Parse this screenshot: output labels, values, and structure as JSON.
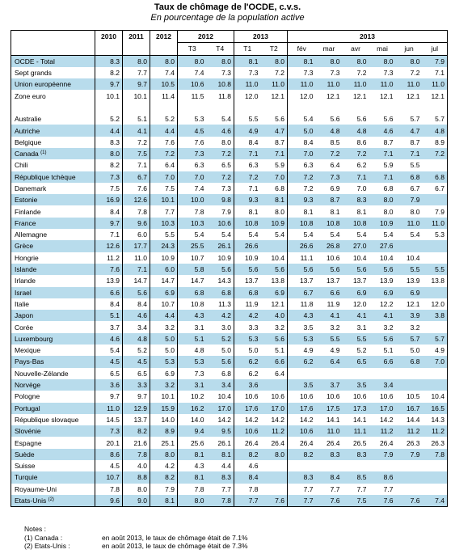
{
  "title": "Taux de chômage de l'OCDE, c.v.s.",
  "subtitle": "En pourcentage de la population active",
  "header": {
    "years": [
      "2010",
      "2011",
      "2012"
    ],
    "q2012": "2012",
    "q2013": "2013",
    "m2013": "2013",
    "quarters": [
      "T3",
      "T4",
      "T1",
      "T2"
    ],
    "months": [
      "fév",
      "mar",
      "avr",
      "mai",
      "jun",
      "jul"
    ]
  },
  "rows": [
    {
      "label": "OCDE - Total",
      "hl": true,
      "vals": [
        "8.3",
        "8.0",
        "8.0",
        "8.0",
        "8.0",
        "8.1",
        "8.0",
        "8.1",
        "8.0",
        "8.0",
        "8.0",
        "8.0",
        "7.9"
      ]
    },
    {
      "label": "Sept grands",
      "hl": false,
      "vals": [
        "8.2",
        "7.7",
        "7.4",
        "7.4",
        "7.3",
        "7.3",
        "7.2",
        "7.3",
        "7.3",
        "7.2",
        "7.3",
        "7.2",
        "7.1"
      ]
    },
    {
      "label": "Union européenne",
      "hl": true,
      "vals": [
        "9.7",
        "9.7",
        "10.5",
        "10.6",
        "10.8",
        "11.0",
        "11.0",
        "11.0",
        "11.0",
        "11.0",
        "11.0",
        "11.0",
        "11.0"
      ]
    },
    {
      "label": "Zone euro",
      "hl": false,
      "vals": [
        "10.1",
        "10.1",
        "11.4",
        "11.5",
        "11.8",
        "12.0",
        "12.1",
        "12.0",
        "12.1",
        "12.1",
        "12.1",
        "12.1",
        "12.1"
      ]
    },
    {
      "spacer": true
    },
    {
      "label": "Australie",
      "hl": false,
      "vals": [
        "5.2",
        "5.1",
        "5.2",
        "5.3",
        "5.4",
        "5.5",
        "5.6",
        "5.4",
        "5.6",
        "5.6",
        "5.6",
        "5.7",
        "5.7"
      ]
    },
    {
      "label": "Autriche",
      "hl": true,
      "vals": [
        "4.4",
        "4.1",
        "4.4",
        "4.5",
        "4.6",
        "4.9",
        "4.7",
        "5.0",
        "4.8",
        "4.8",
        "4.6",
        "4.7",
        "4.8"
      ]
    },
    {
      "label": "Belgique",
      "hl": false,
      "vals": [
        "8.3",
        "7.2",
        "7.6",
        "7.6",
        "8.0",
        "8.4",
        "8.7",
        "8.4",
        "8.5",
        "8.6",
        "8.7",
        "8.7",
        "8.9"
      ]
    },
    {
      "label": "Canada",
      "sup": "(1)",
      "hl": true,
      "vals": [
        "8.0",
        "7.5",
        "7.2",
        "7.3",
        "7.2",
        "7.1",
        "7.1",
        "7.0",
        "7.2",
        "7.2",
        "7.1",
        "7.1",
        "7.2"
      ]
    },
    {
      "label": "Chili",
      "hl": false,
      "vals": [
        "8.2",
        "7.1",
        "6.4",
        "6.3",
        "6.5",
        "6.3",
        "5.9",
        "6.3",
        "6.4",
        "6.2",
        "5.9",
        "5.5",
        ""
      ]
    },
    {
      "label": "République tchèque",
      "hl": true,
      "vals": [
        "7.3",
        "6.7",
        "7.0",
        "7.0",
        "7.2",
        "7.2",
        "7.0",
        "7.2",
        "7.3",
        "7.1",
        "7.1",
        "6.8",
        "6.8"
      ]
    },
    {
      "label": "Danemark",
      "hl": false,
      "vals": [
        "7.5",
        "7.6",
        "7.5",
        "7.4",
        "7.3",
        "7.1",
        "6.8",
        "7.2",
        "6.9",
        "7.0",
        "6.8",
        "6.7",
        "6.7"
      ]
    },
    {
      "label": "Estonie",
      "hl": true,
      "vals": [
        "16.9",
        "12.6",
        "10.1",
        "10.0",
        "9.8",
        "9.3",
        "8.1",
        "9.3",
        "8.7",
        "8.3",
        "8.0",
        "7.9",
        ""
      ]
    },
    {
      "label": "Finlande",
      "hl": false,
      "vals": [
        "8.4",
        "7.8",
        "7.7",
        "7.8",
        "7.9",
        "8.1",
        "8.0",
        "8.1",
        "8.1",
        "8.1",
        "8.0",
        "8.0",
        "7.9"
      ]
    },
    {
      "label": "France",
      "hl": true,
      "vals": [
        "9.7",
        "9.6",
        "10.3",
        "10.3",
        "10.6",
        "10.8",
        "10.9",
        "10.8",
        "10.8",
        "10.8",
        "10.9",
        "11.0",
        "11.0"
      ]
    },
    {
      "label": "Allemagne",
      "hl": false,
      "vals": [
        "7.1",
        "6.0",
        "5.5",
        "5.4",
        "5.4",
        "5.4",
        "5.4",
        "5.4",
        "5.4",
        "5.4",
        "5.4",
        "5.4",
        "5.3"
      ]
    },
    {
      "label": "Grèce",
      "hl": true,
      "vals": [
        "12.6",
        "17.7",
        "24.3",
        "25.5",
        "26.1",
        "26.6",
        "",
        "26.6",
        "26.8",
        "27.0",
        "27.6",
        "",
        ""
      ]
    },
    {
      "label": "Hongrie",
      "hl": false,
      "vals": [
        "11.2",
        "11.0",
        "10.9",
        "10.7",
        "10.9",
        "10.9",
        "10.4",
        "11.1",
        "10.6",
        "10.4",
        "10.4",
        "10.4",
        ""
      ]
    },
    {
      "label": "Islande",
      "hl": true,
      "vals": [
        "7.6",
        "7.1",
        "6.0",
        "5.8",
        "5.6",
        "5.6",
        "5.6",
        "5.6",
        "5.6",
        "5.6",
        "5.6",
        "5.5",
        "5.5"
      ]
    },
    {
      "label": "Irlande",
      "hl": false,
      "vals": [
        "13.9",
        "14.7",
        "14.7",
        "14.7",
        "14.3",
        "13.7",
        "13.8",
        "13.7",
        "13.7",
        "13.7",
        "13.9",
        "13.9",
        "13.8"
      ]
    },
    {
      "label": "Israel",
      "hl": true,
      "vals": [
        "6.6",
        "5.6",
        "6.9",
        "6.8",
        "6.8",
        "6.8",
        "6.9",
        "6.7",
        "6.6",
        "6.9",
        "6.9",
        "6.9",
        ""
      ]
    },
    {
      "label": "Italie",
      "hl": false,
      "vals": [
        "8.4",
        "8.4",
        "10.7",
        "10.8",
        "11.3",
        "11.9",
        "12.1",
        "11.8",
        "11.9",
        "12.0",
        "12.2",
        "12.1",
        "12.0"
      ]
    },
    {
      "label": "Japon",
      "hl": true,
      "vals": [
        "5.1",
        "4.6",
        "4.4",
        "4.3",
        "4.2",
        "4.2",
        "4.0",
        "4.3",
        "4.1",
        "4.1",
        "4.1",
        "3.9",
        "3.8"
      ]
    },
    {
      "label": "Corée",
      "hl": false,
      "vals": [
        "3.7",
        "3.4",
        "3.2",
        "3.1",
        "3.0",
        "3.3",
        "3.2",
        "3.5",
        "3.2",
        "3.1",
        "3.2",
        "3.2",
        ""
      ]
    },
    {
      "label": "Luxembourg",
      "hl": true,
      "vals": [
        "4.6",
        "4.8",
        "5.0",
        "5.1",
        "5.2",
        "5.3",
        "5.6",
        "5.3",
        "5.5",
        "5.5",
        "5.6",
        "5.7",
        "5.7"
      ]
    },
    {
      "label": "Mexique",
      "hl": false,
      "vals": [
        "5.4",
        "5.2",
        "5.0",
        "4.8",
        "5.0",
        "5.0",
        "5.1",
        "4.9",
        "4.9",
        "5.2",
        "5.1",
        "5.0",
        "4.9"
      ]
    },
    {
      "label": "Pays-Bas",
      "hl": true,
      "vals": [
        "4.5",
        "4.5",
        "5.3",
        "5.3",
        "5.6",
        "6.2",
        "6.6",
        "6.2",
        "6.4",
        "6.5",
        "6.6",
        "6.8",
        "7.0"
      ]
    },
    {
      "label": "Nouvelle-Zélande",
      "hl": false,
      "vals": [
        "6.5",
        "6.5",
        "6.9",
        "7.3",
        "6.8",
        "6.2",
        "6.4",
        "",
        "",
        "",
        "",
        "",
        ""
      ]
    },
    {
      "label": "Norvège",
      "hl": true,
      "vals": [
        "3.6",
        "3.3",
        "3.2",
        "3.1",
        "3.4",
        "3.6",
        "",
        "3.5",
        "3.7",
        "3.5",
        "3.4",
        "",
        ""
      ]
    },
    {
      "label": "Pologne",
      "hl": false,
      "vals": [
        "9.7",
        "9.7",
        "10.1",
        "10.2",
        "10.4",
        "10.6",
        "10.6",
        "10.6",
        "10.6",
        "10.6",
        "10.6",
        "10.5",
        "10.4"
      ]
    },
    {
      "label": "Portugal",
      "hl": true,
      "vals": [
        "11.0",
        "12.9",
        "15.9",
        "16.2",
        "17.0",
        "17.6",
        "17.0",
        "17.6",
        "17.5",
        "17.3",
        "17.0",
        "16.7",
        "16.5"
      ]
    },
    {
      "label": "République slovaque",
      "hl": false,
      "vals": [
        "14.5",
        "13.7",
        "14.0",
        "14.0",
        "14.2",
        "14.2",
        "14.2",
        "14.2",
        "14.1",
        "14.1",
        "14.2",
        "14.4",
        "14.3"
      ]
    },
    {
      "label": "Slovénie",
      "hl": true,
      "vals": [
        "7.3",
        "8.2",
        "8.9",
        "9.4",
        "9.5",
        "10.6",
        "11.2",
        "10.6",
        "11.0",
        "11.1",
        "11.2",
        "11.2",
        "11.2"
      ]
    },
    {
      "label": "Espagne",
      "hl": false,
      "vals": [
        "20.1",
        "21.6",
        "25.1",
        "25.6",
        "26.1",
        "26.4",
        "26.4",
        "26.4",
        "26.4",
        "26.5",
        "26.4",
        "26.3",
        "26.3"
      ]
    },
    {
      "label": "Suède",
      "hl": true,
      "vals": [
        "8.6",
        "7.8",
        "8.0",
        "8.1",
        "8.1",
        "8.2",
        "8.0",
        "8.2",
        "8.3",
        "8.3",
        "7.9",
        "7.9",
        "7.8"
      ]
    },
    {
      "label": "Suisse",
      "hl": false,
      "vals": [
        "4.5",
        "4.0",
        "4.2",
        "4.3",
        "4.4",
        "4.6",
        "",
        "",
        "",
        "",
        "",
        "",
        ""
      ]
    },
    {
      "label": "Turquie",
      "hl": true,
      "vals": [
        "10.7",
        "8.8",
        "8.2",
        "8.1",
        "8.3",
        "8.4",
        "",
        "8.3",
        "8.4",
        "8.5",
        "8.6",
        "",
        ""
      ]
    },
    {
      "label": "Royaume-Uni",
      "hl": false,
      "vals": [
        "7.8",
        "8.0",
        "7.9",
        "7.8",
        "7.7",
        "7.8",
        "",
        "7.7",
        "7.7",
        "7.7",
        "7.7",
        "",
        ""
      ]
    },
    {
      "label": "Etats-Unis",
      "sup": "(2)",
      "hl": true,
      "vals": [
        "9.6",
        "9.0",
        "8.1",
        "8.0",
        "7.8",
        "7.7",
        "7.6",
        "7.7",
        "7.6",
        "7.5",
        "7.6",
        "7.6",
        "7.4"
      ]
    }
  ],
  "notes": {
    "heading": "Notes :",
    "items": [
      {
        "key": "(1) Canada :",
        "text": "en août 2013, le taux de chômage était de 7.1%"
      },
      {
        "key": "(2) Etats-Unis :",
        "text": "en août 2013, le taux de chômage était de 7.3%"
      }
    ]
  }
}
